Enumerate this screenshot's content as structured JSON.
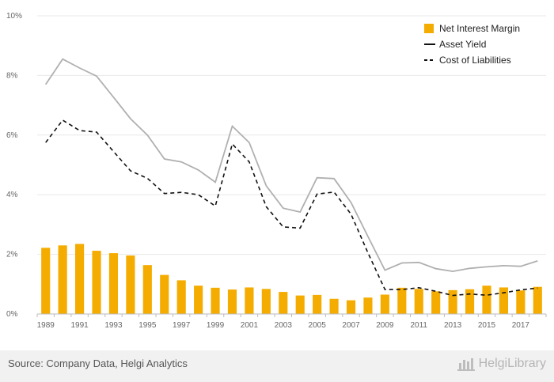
{
  "chart_data": {
    "type": "bar+line",
    "x": [
      1989,
      1990,
      1991,
      1992,
      1993,
      1994,
      1995,
      1996,
      1997,
      1998,
      1999,
      2000,
      2001,
      2002,
      2003,
      2004,
      2005,
      2006,
      2007,
      2008,
      2009,
      2010,
      2011,
      2012,
      2013,
      2014,
      2015,
      2016,
      2017,
      2018
    ],
    "tick_labels": [
      "1989",
      "1991",
      "1993",
      "1995",
      "1997",
      "1999",
      "2001",
      "2003",
      "2005",
      "2007",
      "2009",
      "2011",
      "2013",
      "2015",
      "2017"
    ],
    "y_tick_labels": [
      "0%",
      "2%",
      "4%",
      "6%",
      "8%",
      "10%"
    ],
    "ylim": [
      0,
      10
    ],
    "series": [
      {
        "name": "Net Interest Margin",
        "kind": "bar",
        "color": "#f5ac00",
        "values": [
          2.22,
          2.3,
          2.35,
          2.12,
          2.04,
          1.96,
          1.64,
          1.31,
          1.13,
          0.95,
          0.88,
          0.82,
          0.89,
          0.84,
          0.74,
          0.62,
          0.64,
          0.51,
          0.46,
          0.55,
          0.65,
          0.88,
          0.84,
          0.76,
          0.8,
          0.83,
          0.95,
          0.89,
          0.79,
          0.91
        ]
      },
      {
        "name": "Asset Yield",
        "kind": "line",
        "color": "#b0b0b0",
        "values": [
          7.7,
          8.55,
          8.25,
          7.98,
          7.27,
          6.55,
          6.0,
          5.2,
          5.1,
          4.83,
          4.42,
          6.3,
          5.75,
          4.3,
          3.55,
          3.42,
          4.57,
          4.54,
          3.74,
          2.6,
          1.47,
          1.71,
          1.73,
          1.52,
          1.43,
          1.53,
          1.58,
          1.62,
          1.6,
          1.78
        ]
      },
      {
        "name": "Cost of Liabilities",
        "kind": "line",
        "dash": true,
        "color": "#111111",
        "values": [
          5.75,
          6.5,
          6.15,
          6.1,
          5.45,
          4.8,
          4.55,
          4.04,
          4.08,
          4.0,
          3.62,
          5.7,
          5.1,
          3.6,
          2.92,
          2.88,
          4.02,
          4.09,
          3.35,
          2.05,
          0.82,
          0.82,
          0.88,
          0.76,
          0.62,
          0.67,
          0.63,
          0.71,
          0.81,
          0.87
        ]
      }
    ],
    "legend": [
      {
        "label": "Net Interest Margin",
        "swatch": "bar",
        "color": "#f5ac00"
      },
      {
        "label": "Asset Yield",
        "swatch": "solid-line",
        "color": "#111111"
      },
      {
        "label": "Cost of Liabilities",
        "swatch": "dashed-line",
        "color": "#111111"
      }
    ],
    "legend_position": "top-right",
    "grid": true
  },
  "footer": {
    "source": "Source: Company Data, Helgi Analytics",
    "brand_icon": "helgi-library-logo-icon",
    "brand": "HelgiLibrary"
  }
}
